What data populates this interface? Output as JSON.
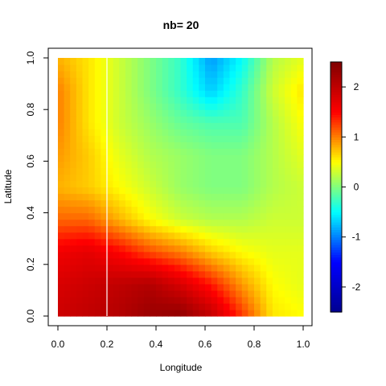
{
  "chart_data": {
    "type": "heatmap",
    "title": "nb= 20",
    "xlabel": "Longitude",
    "ylabel": "Latitude",
    "xlim": [
      0,
      1
    ],
    "ylim": [
      0,
      1
    ],
    "x_ticks": [
      "0.0",
      "0.2",
      "0.4",
      "0.6",
      "0.8",
      "1.0"
    ],
    "y_ticks": [
      "0.0",
      "0.2",
      "0.4",
      "0.6",
      "0.8",
      "1.0"
    ],
    "zlim": [
      -2.5,
      2.5
    ],
    "colorbar_ticks": [
      "-2",
      "-1",
      "0",
      "1",
      "2"
    ],
    "colorbar_palette": [
      "#00008F",
      "#0000FF",
      "#00FFFF",
      "#FFFF00",
      "#FF0000",
      "#800000"
    ],
    "vertical_line_x": 0.2,
    "x": [
      0,
      0.125,
      0.25,
      0.375,
      0.5,
      0.625,
      0.75,
      0.875,
      1
    ],
    "y": [
      0,
      0.125,
      0.25,
      0.375,
      0.5,
      0.625,
      0.75,
      0.875,
      1
    ],
    "z": [
      [
        1.9,
        2.0,
        2.1,
        2.3,
        2.4,
        2.0,
        1.3,
        0.6,
        0.5
      ],
      [
        1.8,
        1.9,
        2.0,
        2.1,
        1.8,
        1.4,
        0.9,
        0.5,
        0.4
      ],
      [
        1.6,
        1.7,
        1.5,
        1.2,
        1.0,
        0.7,
        0.5,
        0.4,
        0.4
      ],
      [
        1.1,
        1.1,
        0.8,
        0.5,
        0.3,
        0.2,
        0.2,
        0.3,
        0.3
      ],
      [
        0.8,
        0.7,
        0.5,
        0.3,
        0.1,
        0.0,
        0.0,
        0.2,
        0.3
      ],
      [
        0.9,
        0.7,
        0.4,
        0.2,
        0.1,
        0.0,
        0.0,
        0.2,
        0.4
      ],
      [
        1.0,
        0.6,
        0.3,
        0.1,
        -0.1,
        -0.2,
        -0.2,
        0.2,
        0.5
      ],
      [
        1.0,
        0.6,
        0.3,
        0.0,
        -0.3,
        -0.7,
        -0.3,
        0.3,
        0.6
      ],
      [
        0.8,
        0.6,
        0.3,
        0.0,
        -0.3,
        -0.9,
        -0.5,
        0.2,
        0.4
      ]
    ]
  }
}
